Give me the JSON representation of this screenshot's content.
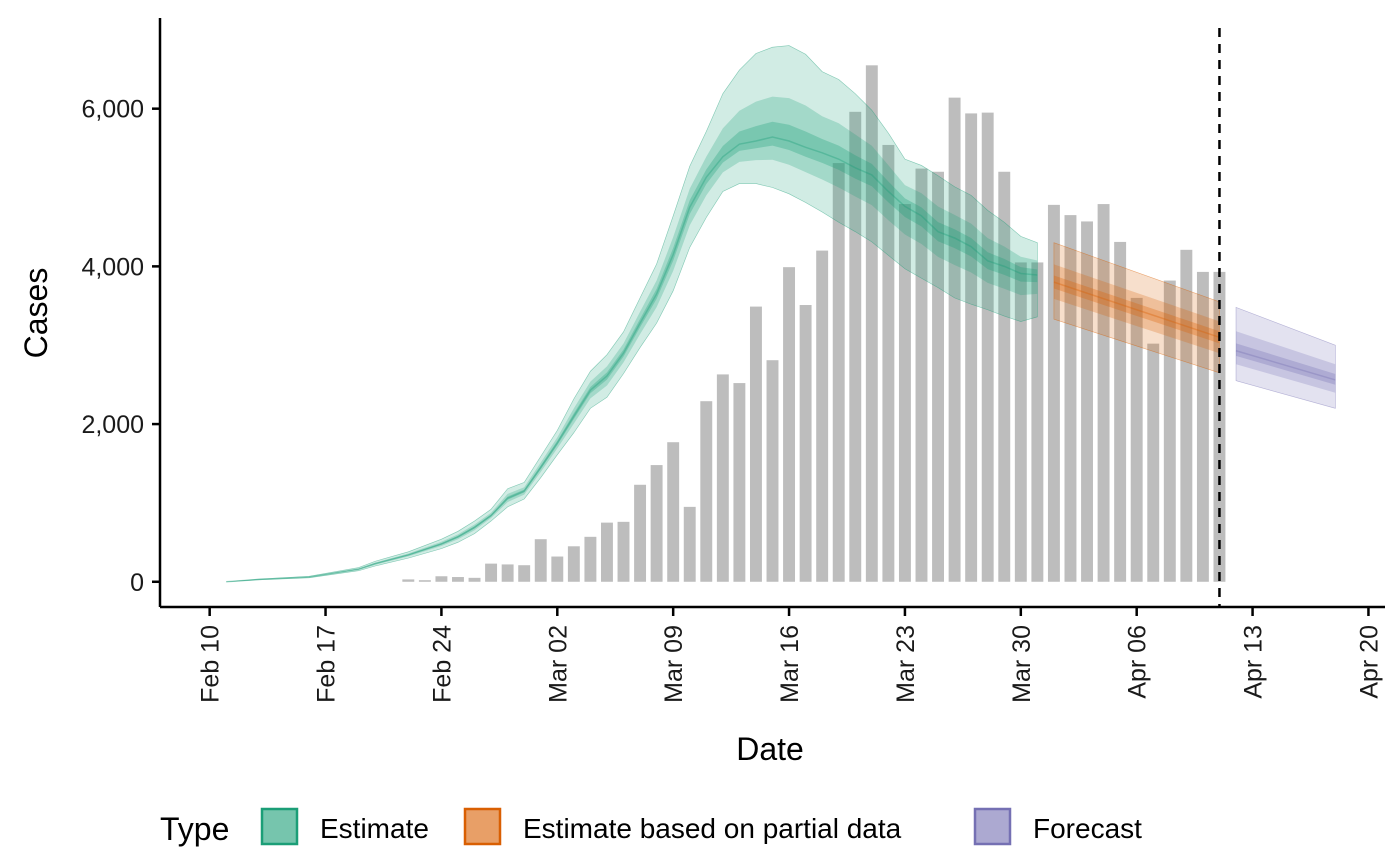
{
  "chart_data": {
    "type": "bar",
    "xlabel": "Date",
    "ylabel": "Cases",
    "xlim": [
      "2020-02-07",
      "2020-04-21"
    ],
    "ylim": [
      -320,
      7150
    ],
    "x_ticks": [
      "2020-02-10",
      "2020-02-17",
      "2020-02-24",
      "2020-03-02",
      "2020-03-09",
      "2020-03-16",
      "2020-03-23",
      "2020-03-30",
      "2020-04-06",
      "2020-04-13",
      "2020-04-20"
    ],
    "x_tick_labels": [
      "Feb 10",
      "Feb 17",
      "Feb 24",
      "Mar 02",
      "Mar 09",
      "Mar 16",
      "Mar 23",
      "Mar 30",
      "Apr 06",
      "Apr 13",
      "Apr 20"
    ],
    "y_ticks": [
      0,
      2000,
      4000,
      6000
    ],
    "y_tick_labels": [
      "0",
      "2,000",
      "4,000",
      "6,000"
    ],
    "vline_date": "2020-04-11",
    "colors": {
      "bars": "#bdbdbd",
      "Estimate": "#1b9e77",
      "Estimate based on partial data": "#d95f02",
      "Forecast": "#7570b3"
    },
    "reported_cases": {
      "dates": [
        "2020-02-22",
        "2020-02-23",
        "2020-02-24",
        "2020-02-25",
        "2020-02-26",
        "2020-02-27",
        "2020-02-28",
        "2020-02-29",
        "2020-03-01",
        "2020-03-02",
        "2020-03-03",
        "2020-03-04",
        "2020-03-05",
        "2020-03-06",
        "2020-03-07",
        "2020-03-08",
        "2020-03-09",
        "2020-03-10",
        "2020-03-11",
        "2020-03-12",
        "2020-03-13",
        "2020-03-14",
        "2020-03-15",
        "2020-03-16",
        "2020-03-17",
        "2020-03-18",
        "2020-03-19",
        "2020-03-20",
        "2020-03-21",
        "2020-03-22",
        "2020-03-23",
        "2020-03-24",
        "2020-03-25",
        "2020-03-26",
        "2020-03-27",
        "2020-03-28",
        "2020-03-29",
        "2020-03-30",
        "2020-03-31",
        "2020-04-01",
        "2020-04-02",
        "2020-04-03",
        "2020-04-04",
        "2020-04-05",
        "2020-04-06",
        "2020-04-07",
        "2020-04-08",
        "2020-04-09",
        "2020-04-10",
        "2020-04-11"
      ],
      "values": [
        30,
        20,
        70,
        60,
        50,
        230,
        220,
        210,
        540,
        320,
        450,
        570,
        750,
        760,
        1230,
        1480,
        1770,
        950,
        2290,
        2630,
        2520,
        3490,
        2810,
        3990,
        3510,
        4200,
        5310,
        5960,
        6550,
        5540,
        4790,
        5240,
        5200,
        6140,
        5940,
        5950,
        5200,
        4050,
        4050,
        4780,
        4650,
        4570,
        4790,
        4310,
        3600,
        3020,
        3820,
        4210,
        3930,
        3930
      ]
    },
    "series": [
      {
        "name": "Estimate",
        "x": [
          "2020-02-11",
          "2020-02-13",
          "2020-02-16",
          "2020-02-19",
          "2020-02-20",
          "2020-02-22",
          "2020-02-24",
          "2020-02-25",
          "2020-02-26",
          "2020-02-27",
          "2020-02-28",
          "2020-02-29",
          "2020-03-01",
          "2020-03-02",
          "2020-03-03",
          "2020-03-04",
          "2020-03-05",
          "2020-03-06",
          "2020-03-07",
          "2020-03-08",
          "2020-03-09",
          "2020-03-10",
          "2020-03-11",
          "2020-03-12",
          "2020-03-13",
          "2020-03-14",
          "2020-03-15",
          "2020-03-16",
          "2020-03-17",
          "2020-03-18",
          "2020-03-19",
          "2020-03-20",
          "2020-03-21",
          "2020-03-22",
          "2020-03-23",
          "2020-03-24",
          "2020-03-25",
          "2020-03-26",
          "2020-03-27",
          "2020-03-28",
          "2020-03-29",
          "2020-03-30",
          "2020-03-31"
        ],
        "median": [
          0,
          30,
          60,
          160,
          230,
          340,
          480,
          570,
          690,
          840,
          1060,
          1150,
          1450,
          1760,
          2100,
          2430,
          2610,
          2900,
          3280,
          3650,
          4150,
          4750,
          5130,
          5390,
          5550,
          5590,
          5640,
          5590,
          5510,
          5440,
          5360,
          5250,
          5160,
          4950,
          4760,
          4640,
          4440,
          4360,
          4250,
          4070,
          4000,
          3910,
          3890
        ],
        "lower90": [
          0,
          25,
          50,
          140,
          200,
          300,
          420,
          500,
          610,
          770,
          950,
          1050,
          1320,
          1610,
          1890,
          2200,
          2340,
          2640,
          2970,
          3280,
          3690,
          4240,
          4620,
          4950,
          5050,
          5050,
          5000,
          4920,
          4810,
          4690,
          4560,
          4440,
          4310,
          4140,
          3970,
          3850,
          3730,
          3600,
          3520,
          3450,
          3370,
          3300,
          3360
        ],
        "upper90": [
          0,
          35,
          70,
          180,
          260,
          380,
          540,
          640,
          770,
          920,
          1180,
          1260,
          1590,
          1920,
          2320,
          2670,
          2880,
          3170,
          3600,
          4030,
          4640,
          5270,
          5710,
          6190,
          6490,
          6700,
          6780,
          6800,
          6690,
          6470,
          6370,
          6190,
          5980,
          5690,
          5360,
          5280,
          5150,
          5010,
          4900,
          4710,
          4560,
          4380,
          4300
        ]
      },
      {
        "name": "Estimate based on partial data",
        "x": [
          "2020-04-01",
          "2020-04-11"
        ],
        "median": [
          3800,
          3100
        ],
        "lower90": [
          3330,
          2650
        ],
        "upper90": [
          4300,
          3550
        ]
      },
      {
        "name": "Forecast",
        "x": [
          "2020-04-12",
          "2020-04-18"
        ],
        "median": [
          2930,
          2560
        ],
        "lower90": [
          2550,
          2200
        ],
        "upper90": [
          3480,
          3000
        ]
      }
    ]
  },
  "legend": {
    "title": "Type",
    "items": [
      "Estimate",
      "Estimate based on partial data",
      "Forecast"
    ]
  }
}
